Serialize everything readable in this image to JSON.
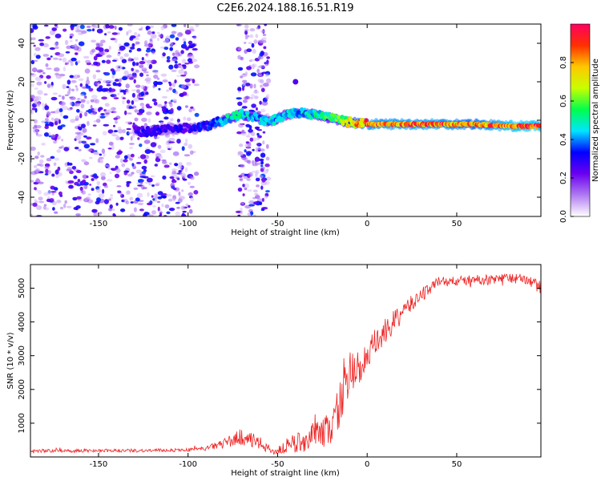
{
  "chart_data": [
    {
      "type": "heatmap",
      "title": "C2E6.2024.188.16.51.R19",
      "xlabel": "Height of straight line (km)",
      "ylabel": "Frequency (Hz)",
      "xlim": [
        -188,
        97
      ],
      "ylim": [
        -50,
        50
      ],
      "xticks": [
        -150,
        -100,
        -50,
        0,
        50
      ],
      "yticks": [
        -40,
        -20,
        0,
        20,
        40
      ],
      "colorbar": {
        "label": "Normalized spectral amplitude",
        "range": [
          0,
          1
        ],
        "ticks": [
          0.0,
          0.2,
          0.4,
          0.6,
          0.8
        ],
        "colors": [
          "#ffffff",
          "#b07af2",
          "#6a00f0",
          "#0000ff",
          "#00e5ff",
          "#00ff4c",
          "#c8ff00",
          "#ffc800",
          "#ff3000",
          "#ff0060"
        ]
      },
      "ridge": {
        "x": [
          -130,
          -125,
          -100,
          -90,
          -80,
          -70,
          -65,
          -55,
          -45,
          -35,
          -25,
          -15,
          -10,
          0,
          20,
          40,
          60,
          80,
          97
        ],
        "y": [
          -5,
          -6,
          -4,
          -3,
          0,
          3,
          2,
          -1,
          3,
          4,
          2,
          0,
          -1,
          -2,
          -2,
          -2,
          -2,
          -3,
          -3
        ],
        "amp": [
          0.25,
          0.3,
          0.3,
          0.35,
          0.45,
          0.55,
          0.45,
          0.45,
          0.45,
          0.45,
          0.55,
          0.65,
          0.75,
          0.9,
          0.9,
          0.9,
          0.85,
          0.95,
          0.95
        ]
      },
      "noise_regions": [
        {
          "x_range": [
            -188,
            -95
          ],
          "y_range": [
            -50,
            50
          ],
          "density": "high"
        },
        {
          "x_range": [
            -72,
            -55
          ],
          "y_range": [
            -50,
            50
          ],
          "density": "medium"
        }
      ],
      "blobs": [
        {
          "x": -40,
          "y": 20,
          "amp": 0.25
        }
      ]
    },
    {
      "type": "line",
      "xlabel": "Height of straight line (km)",
      "ylabel": "SNR (10 * v/v)",
      "xlim": [
        -188,
        97
      ],
      "ylim": [
        0,
        5700
      ],
      "xticks": [
        -150,
        -100,
        -50,
        0,
        50
      ],
      "yticks": [
        1000,
        2000,
        3000,
        4000,
        5000
      ],
      "color": "#ee2222",
      "series": [
        {
          "name": "SNR",
          "x": [
            -188,
            -120,
            -100,
            -90,
            -80,
            -70,
            -60,
            -52,
            -45,
            -35,
            -25,
            -20,
            -15,
            -10,
            -5,
            0,
            5,
            10,
            20,
            30,
            40,
            50,
            60,
            70,
            80,
            90,
            97
          ],
          "y": [
            180,
            190,
            210,
            250,
            400,
            600,
            400,
            150,
            300,
            500,
            700,
            900,
            1600,
            2400,
            2600,
            2900,
            3400,
            3700,
            4300,
            4800,
            5200,
            5200,
            5250,
            5250,
            5300,
            5250,
            5000
          ],
          "noise": [
            50,
            50,
            50,
            60,
            150,
            250,
            200,
            80,
            250,
            350,
            450,
            550,
            700,
            700,
            600,
            500,
            450,
            400,
            280,
            220,
            160,
            150,
            150,
            150,
            150,
            150,
            200
          ]
        }
      ]
    }
  ]
}
